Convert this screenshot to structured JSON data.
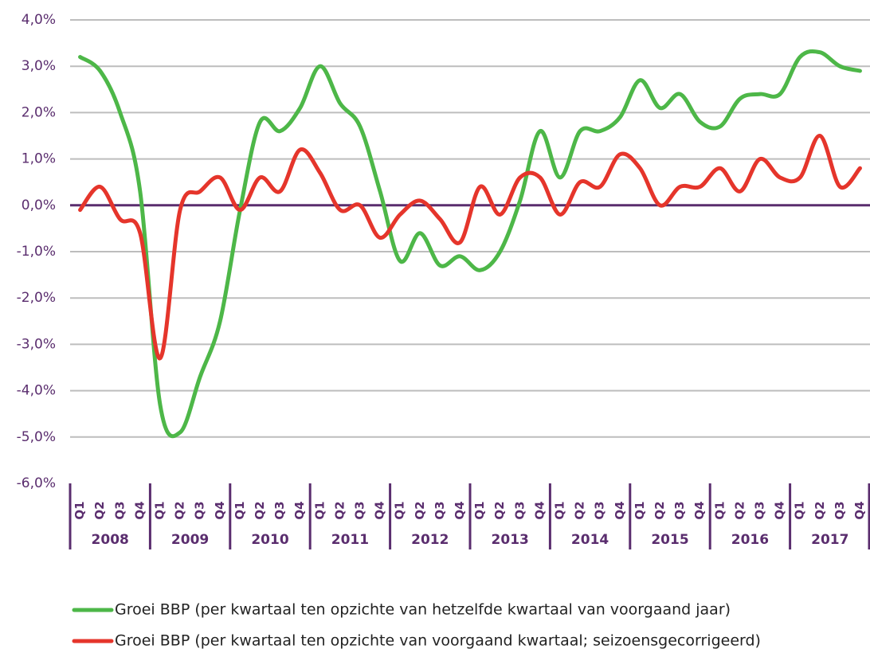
{
  "chart_data": {
    "type": "line",
    "categories": [
      "Q1",
      "Q2",
      "Q3",
      "Q4",
      "Q1",
      "Q2",
      "Q3",
      "Q4",
      "Q1",
      "Q2",
      "Q3",
      "Q4",
      "Q1",
      "Q2",
      "Q3",
      "Q4",
      "Q1",
      "Q2",
      "Q3",
      "Q4",
      "Q1",
      "Q2",
      "Q3",
      "Q4",
      "Q1",
      "Q2",
      "Q3",
      "Q4",
      "Q1",
      "Q2",
      "Q3",
      "Q4",
      "Q1",
      "Q2",
      "Q3",
      "Q4",
      "Q1",
      "Q2",
      "Q3",
      "Q4"
    ],
    "years": [
      "2008",
      "2009",
      "2010",
      "2011",
      "2012",
      "2013",
      "2014",
      "2015",
      "2016",
      "2017"
    ],
    "series": [
      {
        "name": "Groei BBP (per kwartaal ten opzichte van hetzelfde kwartaal van voorgaand jaar)",
        "color": "#4db748",
        "values": [
          3.2,
          2.9,
          2.0,
          0.3,
          -4.3,
          -4.9,
          -3.7,
          -2.5,
          -0.1,
          1.8,
          1.6,
          2.1,
          3.0,
          2.2,
          1.7,
          0.3,
          -1.2,
          -0.6,
          -1.3,
          -1.1,
          -1.4,
          -1.0,
          0.1,
          1.6,
          0.6,
          1.6,
          1.6,
          1.9,
          2.7,
          2.1,
          2.4,
          1.8,
          1.7,
          2.3,
          2.4,
          2.4,
          3.2,
          3.3,
          3.0,
          2.9
        ]
      },
      {
        "name": "Groei BBP (per kwartaal ten opzichte van voorgaand kwartaal; seizoensgecorrigeerd)",
        "color": "#e5352b",
        "values": [
          -0.1,
          0.4,
          -0.3,
          -0.6,
          -3.3,
          -0.1,
          0.3,
          0.6,
          -0.1,
          0.6,
          0.3,
          1.2,
          0.7,
          -0.1,
          0.0,
          -0.7,
          -0.2,
          0.1,
          -0.3,
          -0.8,
          0.4,
          -0.2,
          0.6,
          0.6,
          -0.2,
          0.5,
          0.4,
          1.1,
          0.8,
          0.0,
          0.4,
          0.4,
          0.8,
          0.3,
          1.0,
          0.6,
          0.6,
          1.5,
          0.4,
          0.8
        ]
      }
    ],
    "ylim": [
      -6,
      4
    ],
    "yticks": [
      {
        "value": -6,
        "label": "-6,0%"
      },
      {
        "value": -5,
        "label": "-5,0%"
      },
      {
        "value": -4,
        "label": "-4,0%"
      },
      {
        "value": -3,
        "label": "-3,0%"
      },
      {
        "value": -2,
        "label": "-2,0%"
      },
      {
        "value": -1,
        "label": "-1,0%"
      },
      {
        "value": 0,
        "label": "0,0%"
      },
      {
        "value": 1,
        "label": "1,0%"
      },
      {
        "value": 2,
        "label": "2,0%"
      },
      {
        "value": 3,
        "label": "3,0%"
      },
      {
        "value": 4,
        "label": "4,0%"
      }
    ],
    "grid": true
  }
}
